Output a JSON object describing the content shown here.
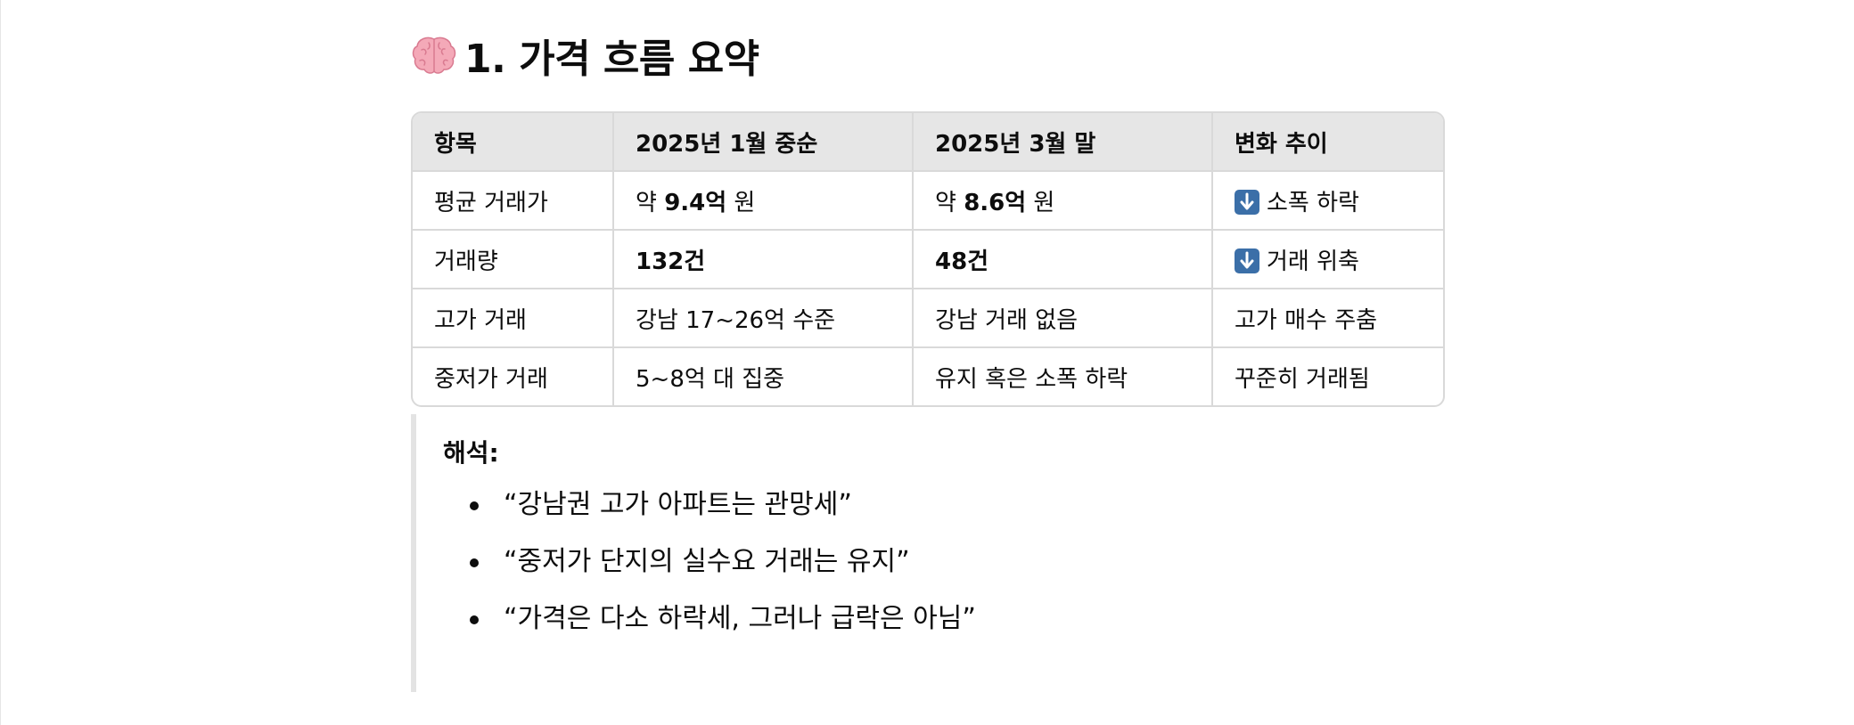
{
  "heading": {
    "icon": "brain-icon",
    "title": "1. 가격 흐름 요약"
  },
  "table": {
    "headers": [
      "항목",
      "2025년 1월 중순",
      "2025년 3월 말",
      "변화 추이"
    ],
    "rows": [
      {
        "item": "평균 거래가",
        "jan_prefix": "약 ",
        "jan_value": "9.4억",
        "jan_suffix": " 원",
        "mar_prefix": "약 ",
        "mar_value": "8.6억",
        "mar_suffix": " 원",
        "trend_icon": "down-arrow-icon",
        "trend": "소폭 하락"
      },
      {
        "item": "거래량",
        "jan": "132건",
        "mar": "48건",
        "trend_icon": "down-arrow-icon",
        "trend": "거래 위축"
      },
      {
        "item": "고가 거래",
        "jan": "강남 17~26억 수준",
        "mar": "강남 거래 없음",
        "trend": "고가 매수 주춤"
      },
      {
        "item": "중저가 거래",
        "jan": "5~8억 대 집중",
        "mar": "유지 혹은 소폭 하락",
        "trend": "꾸준히 거래됨"
      }
    ]
  },
  "interpretation": {
    "label": "해석:",
    "bullets": [
      "“강남권 고가 아파트는 관망세”",
      "“중저가 단지의 실수요 거래는 유지”",
      "“가격은 다소 하락세, 그러나 급락은 아님”"
    ]
  },
  "colors": {
    "header_bg": "#e6e6e6",
    "border": "#d9d9d9",
    "arrow_badge": "#3b6fa8",
    "text": "#0d0d0d"
  }
}
